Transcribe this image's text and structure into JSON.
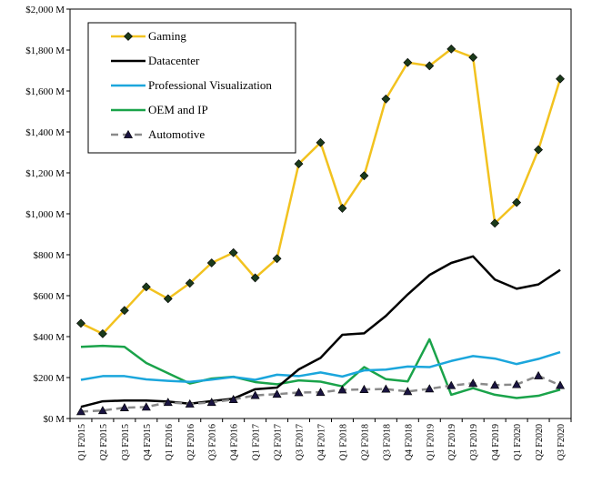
{
  "chart_data": {
    "type": "line",
    "title": "",
    "xlabel": "",
    "ylabel": "",
    "ylim": [
      0,
      2000
    ],
    "y_ticks": [
      "$0 M",
      "$200 M",
      "$400 M",
      "$600 M",
      "$800 M",
      "$1,000 M",
      "$1,200 M",
      "$1,400 M",
      "$1,600 M",
      "$1,800 M",
      "$2,000 M"
    ],
    "categories": [
      "Q1 F2015",
      "Q2 F2015",
      "Q3 F2015",
      "Q4 F2015",
      "Q1 F2016",
      "Q2 F2016",
      "Q3 F2016",
      "Q4 F2016",
      "Q1 F2017",
      "Q2 F2017",
      "Q3 F2017",
      "Q4 F2017",
      "Q1 F2018",
      "Q2 F2018",
      "Q3 F2018",
      "Q4 F2018",
      "Q1 F2019",
      "Q2 F2019",
      "Q3 F2019",
      "Q4 F2019",
      "Q1 F2020",
      "Q2 F2020",
      "Q3 F2020"
    ],
    "grid": false,
    "legend_position": "top-left",
    "series": [
      {
        "name": "Gaming",
        "color": "#f2c21f",
        "marker": "diamond",
        "values": [
          465,
          414,
          528,
          643,
          585,
          661,
          760,
          810,
          687,
          781,
          1244,
          1348,
          1027,
          1186,
          1561,
          1739,
          1723,
          1805,
          1764,
          954,
          1055,
          1313,
          1659
        ]
      },
      {
        "name": "Datacenter",
        "color": "#000000",
        "marker": "none",
        "values": [
          57,
          84,
          88,
          88,
          83,
          72,
          85,
          97,
          143,
          151,
          240,
          296,
          409,
          416,
          501,
          606,
          701,
          760,
          792,
          679,
          634,
          655,
          726
        ]
      },
      {
        "name": "Professional Visualization",
        "color": "#1ba6dc",
        "marker": "none",
        "values": [
          189,
          207,
          207,
          191,
          184,
          179,
          190,
          203,
          189,
          214,
          207,
          225,
          205,
          235,
          239,
          254,
          251,
          281,
          305,
          293,
          266,
          291,
          324
        ]
      },
      {
        "name": "OEM and IP",
        "color": "#1aa34a",
        "marker": "none",
        "values": [
          350,
          355,
          350,
          271,
          221,
          171,
          195,
          204,
          178,
          167,
          186,
          180,
          157,
          251,
          192,
          181,
          387,
          116,
          148,
          116,
          100,
          111,
          141
        ]
      },
      {
        "name": "Automotive",
        "color": "#8a8a8a",
        "marker": "triangle",
        "values": [
          34,
          39,
          53,
          56,
          79,
          71,
          79,
          93,
          113,
          119,
          127,
          128,
          140,
          142,
          144,
          132,
          145,
          161,
          172,
          163,
          166,
          209,
          162
        ]
      }
    ]
  }
}
